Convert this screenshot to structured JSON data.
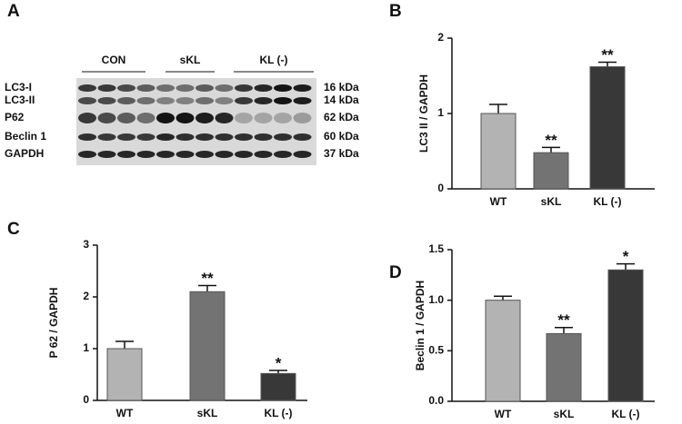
{
  "blot": {
    "panel_label": "A",
    "groups": [
      "CON",
      "sKL",
      "KL (-)"
    ],
    "bands": [
      {
        "name": "LC3-I",
        "size": "16 kDa"
      },
      {
        "name": "LC3-II",
        "size": "14 kDa"
      },
      {
        "name": "P62",
        "size": "62 kDa"
      },
      {
        "name": "Beclin 1",
        "size": "60 kDa"
      },
      {
        "name": "GAPDH",
        "size": "37 kDa"
      }
    ]
  },
  "chart_data": [
    {
      "type": "bar",
      "panel_label": "B",
      "ylabel": "LC3 II / GAPDH",
      "categories": [
        "WT",
        "sKL",
        "KL (-)"
      ],
      "values": [
        1.0,
        0.48,
        1.62
      ],
      "errors": [
        0.12,
        0.07,
        0.06
      ],
      "colors": [
        "#b3b3b3",
        "#737373",
        "#383838"
      ],
      "significance": [
        null,
        "**",
        "**"
      ],
      "ylim": [
        0,
        2
      ],
      "yticks": [
        0,
        1,
        2
      ]
    },
    {
      "type": "bar",
      "panel_label": "C",
      "ylabel": "P 62 / GAPDH",
      "categories": [
        "WT",
        "sKL",
        "KL (-)"
      ],
      "values": [
        1.0,
        2.1,
        0.52
      ],
      "errors": [
        0.14,
        0.12,
        0.06
      ],
      "colors": [
        "#b3b3b3",
        "#737373",
        "#383838"
      ],
      "significance": [
        null,
        "**",
        "*"
      ],
      "ylim": [
        0,
        3
      ],
      "yticks": [
        0,
        1,
        2,
        3
      ]
    },
    {
      "type": "bar",
      "panel_label": "D",
      "ylabel": "Beclin 1 / GAPDH",
      "categories": [
        "WT",
        "sKL",
        "KL (-)"
      ],
      "values": [
        1.0,
        0.67,
        1.3
      ],
      "errors": [
        0.04,
        0.06,
        0.06
      ],
      "colors": [
        "#b3b3b3",
        "#737373",
        "#383838"
      ],
      "significance": [
        null,
        "**",
        "*"
      ],
      "ylim": [
        0,
        1.5
      ],
      "yticks": [
        {
          "value": 0,
          "label": "0.0"
        },
        0.5,
        {
          "value": 1,
          "label": "1.0"
        },
        {
          "value": 1.5,
          "label": "1.5"
        }
      ]
    }
  ]
}
